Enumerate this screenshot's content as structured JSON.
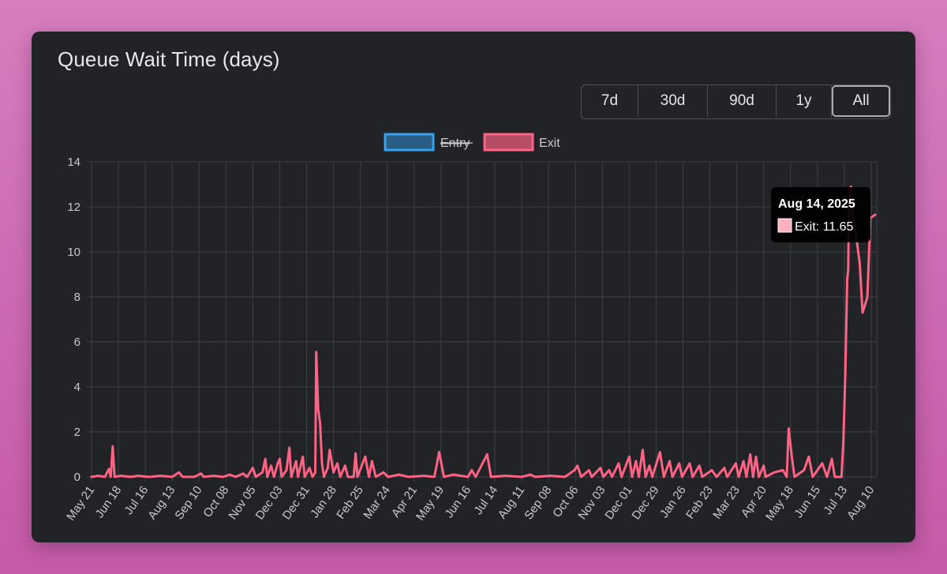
{
  "card": {
    "title": "Queue Wait Time (days)"
  },
  "range_buttons": [
    {
      "label": "7d",
      "active": false
    },
    {
      "label": "30d",
      "active": false
    },
    {
      "label": "90d",
      "active": false
    },
    {
      "label": "1y",
      "active": false
    },
    {
      "label": "All",
      "active": true
    }
  ],
  "tooltip": {
    "title": "Aug 14, 2025",
    "label": "Exit: 11.65",
    "swatch_color": "#ffb1c1"
  },
  "chart_data": {
    "type": "line",
    "title": "Queue Wait Time (days)",
    "ylim": [
      0,
      14
    ],
    "yticks": [
      0,
      2,
      4,
      6,
      8,
      10,
      12,
      14
    ],
    "grid": true,
    "legend": "top-center",
    "x_tick_labels": [
      "May 21",
      "Jun 18",
      "Jul 16",
      "Aug 13",
      "Sep 10",
      "Oct 08",
      "Nov 05",
      "Dec 03",
      "Dec 31",
      "Jan 28",
      "Feb 25",
      "Mar 24",
      "Apr 21",
      "May 19",
      "Jun 16",
      "Jul 14",
      "Aug 11",
      "Sep 08",
      "Oct 06",
      "Nov 03",
      "Dec 01",
      "Dec 29",
      "Jan 26",
      "Feb 23",
      "Mar 23",
      "Apr 20",
      "May 18",
      "Jun 15",
      "Jul 13",
      "Aug 10"
    ],
    "series": [
      {
        "name": "Entry",
        "color": "#36a2eb",
        "hidden": true,
        "points": []
      },
      {
        "name": "Exit",
        "color": "#ff6384",
        "hidden": false,
        "points": [
          [
            "2023-05-21",
            0.0
          ],
          [
            "2023-05-28",
            0.05
          ],
          [
            "2023-06-04",
            0.0
          ],
          [
            "2023-06-08",
            0.35
          ],
          [
            "2023-06-10",
            0.0
          ],
          [
            "2023-06-12",
            1.35
          ],
          [
            "2023-06-14",
            0.0
          ],
          [
            "2023-06-20",
            0.05
          ],
          [
            "2023-07-01",
            0.0
          ],
          [
            "2023-07-08",
            0.05
          ],
          [
            "2023-07-20",
            0.0
          ],
          [
            "2023-08-01",
            0.05
          ],
          [
            "2023-08-13",
            0.0
          ],
          [
            "2023-08-20",
            0.2
          ],
          [
            "2023-08-24",
            0.0
          ],
          [
            "2023-09-05",
            0.0
          ],
          [
            "2023-09-12",
            0.15
          ],
          [
            "2023-09-15",
            0.0
          ],
          [
            "2023-09-25",
            0.05
          ],
          [
            "2023-10-05",
            0.0
          ],
          [
            "2023-10-12",
            0.1
          ],
          [
            "2023-10-18",
            0.0
          ],
          [
            "2023-10-26",
            0.15
          ],
          [
            "2023-10-30",
            0.0
          ],
          [
            "2023-11-05",
            0.4
          ],
          [
            "2023-11-08",
            0.0
          ],
          [
            "2023-11-15",
            0.2
          ],
          [
            "2023-11-18",
            0.8
          ],
          [
            "2023-11-20",
            0.0
          ],
          [
            "2023-11-24",
            0.5
          ],
          [
            "2023-11-27",
            0.0
          ],
          [
            "2023-12-01",
            0.6
          ],
          [
            "2023-12-03",
            0.8
          ],
          [
            "2023-12-05",
            0.0
          ],
          [
            "2023-12-10",
            0.3
          ],
          [
            "2023-12-13",
            1.3
          ],
          [
            "2023-12-15",
            0.0
          ],
          [
            "2023-12-20",
            0.7
          ],
          [
            "2023-12-22",
            0.0
          ],
          [
            "2023-12-27",
            0.9
          ],
          [
            "2023-12-29",
            0.0
          ],
          [
            "2024-01-03",
            0.4
          ],
          [
            "2024-01-06",
            0.0
          ],
          [
            "2024-01-09",
            0.2
          ],
          [
            "2024-01-10",
            5.55
          ],
          [
            "2024-01-12",
            3.0
          ],
          [
            "2024-01-14",
            2.4
          ],
          [
            "2024-01-16",
            0.6
          ],
          [
            "2024-01-18",
            0.0
          ],
          [
            "2024-01-22",
            0.4
          ],
          [
            "2024-01-24",
            1.2
          ],
          [
            "2024-01-28",
            0.2
          ],
          [
            "2024-02-01",
            0.6
          ],
          [
            "2024-02-04",
            0.0
          ],
          [
            "2024-02-09",
            0.5
          ],
          [
            "2024-02-12",
            0.0
          ],
          [
            "2024-02-18",
            0.0
          ],
          [
            "2024-02-20",
            1.05
          ],
          [
            "2024-02-22",
            0.0
          ],
          [
            "2024-03-01",
            0.9
          ],
          [
            "2024-03-05",
            0.0
          ],
          [
            "2024-03-08",
            0.7
          ],
          [
            "2024-03-12",
            0.0
          ],
          [
            "2024-03-20",
            0.2
          ],
          [
            "2024-03-25",
            0.0
          ],
          [
            "2024-04-05",
            0.1
          ],
          [
            "2024-04-15",
            0.0
          ],
          [
            "2024-05-01",
            0.05
          ],
          [
            "2024-05-12",
            0.0
          ],
          [
            "2024-05-17",
            1.1
          ],
          [
            "2024-05-22",
            0.0
          ],
          [
            "2024-06-01",
            0.1
          ],
          [
            "2024-06-16",
            0.0
          ],
          [
            "2024-06-20",
            0.3
          ],
          [
            "2024-06-24",
            0.0
          ],
          [
            "2024-07-06",
            1.0
          ],
          [
            "2024-07-10",
            0.0
          ],
          [
            "2024-07-25",
            0.05
          ],
          [
            "2024-08-11",
            0.0
          ],
          [
            "2024-08-20",
            0.1
          ],
          [
            "2024-08-25",
            0.0
          ],
          [
            "2024-09-10",
            0.05
          ],
          [
            "2024-09-25",
            0.0
          ],
          [
            "2024-10-05",
            0.3
          ],
          [
            "2024-10-08",
            0.5
          ],
          [
            "2024-10-12",
            0.0
          ],
          [
            "2024-10-20",
            0.3
          ],
          [
            "2024-10-23",
            0.0
          ],
          [
            "2024-11-01",
            0.4
          ],
          [
            "2024-11-04",
            0.0
          ],
          [
            "2024-11-10",
            0.3
          ],
          [
            "2024-11-13",
            0.0
          ],
          [
            "2024-11-20",
            0.6
          ],
          [
            "2024-11-23",
            0.0
          ],
          [
            "2024-12-01",
            0.9
          ],
          [
            "2024-12-04",
            0.0
          ],
          [
            "2024-12-08",
            0.7
          ],
          [
            "2024-12-11",
            0.0
          ],
          [
            "2024-12-15",
            1.2
          ],
          [
            "2024-12-18",
            0.0
          ],
          [
            "2024-12-22",
            0.5
          ],
          [
            "2024-12-25",
            0.0
          ],
          [
            "2025-01-02",
            1.1
          ],
          [
            "2025-01-06",
            0.0
          ],
          [
            "2025-01-12",
            0.7
          ],
          [
            "2025-01-15",
            0.0
          ],
          [
            "2025-01-22",
            0.6
          ],
          [
            "2025-01-25",
            0.0
          ],
          [
            "2025-02-02",
            0.6
          ],
          [
            "2025-02-05",
            0.0
          ],
          [
            "2025-02-12",
            0.5
          ],
          [
            "2025-02-15",
            0.0
          ],
          [
            "2025-02-25",
            0.3
          ],
          [
            "2025-03-02",
            0.0
          ],
          [
            "2025-03-10",
            0.4
          ],
          [
            "2025-03-13",
            0.0
          ],
          [
            "2025-03-22",
            0.6
          ],
          [
            "2025-03-25",
            0.0
          ],
          [
            "2025-03-30",
            0.7
          ],
          [
            "2025-04-02",
            0.0
          ],
          [
            "2025-04-06",
            1.0
          ],
          [
            "2025-04-09",
            0.0
          ],
          [
            "2025-04-12",
            0.9
          ],
          [
            "2025-04-15",
            0.0
          ],
          [
            "2025-04-20",
            0.5
          ],
          [
            "2025-04-22",
            0.0
          ],
          [
            "2025-05-01",
            0.2
          ],
          [
            "2025-05-10",
            0.3
          ],
          [
            "2025-05-14",
            0.0
          ],
          [
            "2025-05-16",
            2.15
          ],
          [
            "2025-05-19",
            1.0
          ],
          [
            "2025-05-22",
            0.0
          ],
          [
            "2025-06-01",
            0.3
          ],
          [
            "2025-06-06",
            0.9
          ],
          [
            "2025-06-10",
            0.0
          ],
          [
            "2025-06-20",
            0.6
          ],
          [
            "2025-06-25",
            0.0
          ],
          [
            "2025-06-30",
            0.8
          ],
          [
            "2025-07-03",
            0.0
          ],
          [
            "2025-07-10",
            0.0
          ],
          [
            "2025-07-12",
            1.6
          ],
          [
            "2025-07-14",
            4.5
          ],
          [
            "2025-07-16",
            8.8
          ],
          [
            "2025-07-17",
            9.2
          ],
          [
            "2025-07-18",
            12.7
          ],
          [
            "2025-07-20",
            12.9
          ],
          [
            "2025-07-22",
            11.5
          ],
          [
            "2025-07-25",
            10.8
          ],
          [
            "2025-07-29",
            9.5
          ],
          [
            "2025-08-01",
            7.3
          ],
          [
            "2025-08-04",
            7.7
          ],
          [
            "2025-08-06",
            8.0
          ],
          [
            "2025-08-09",
            11.5
          ],
          [
            "2025-08-14",
            11.65
          ]
        ]
      }
    ]
  }
}
